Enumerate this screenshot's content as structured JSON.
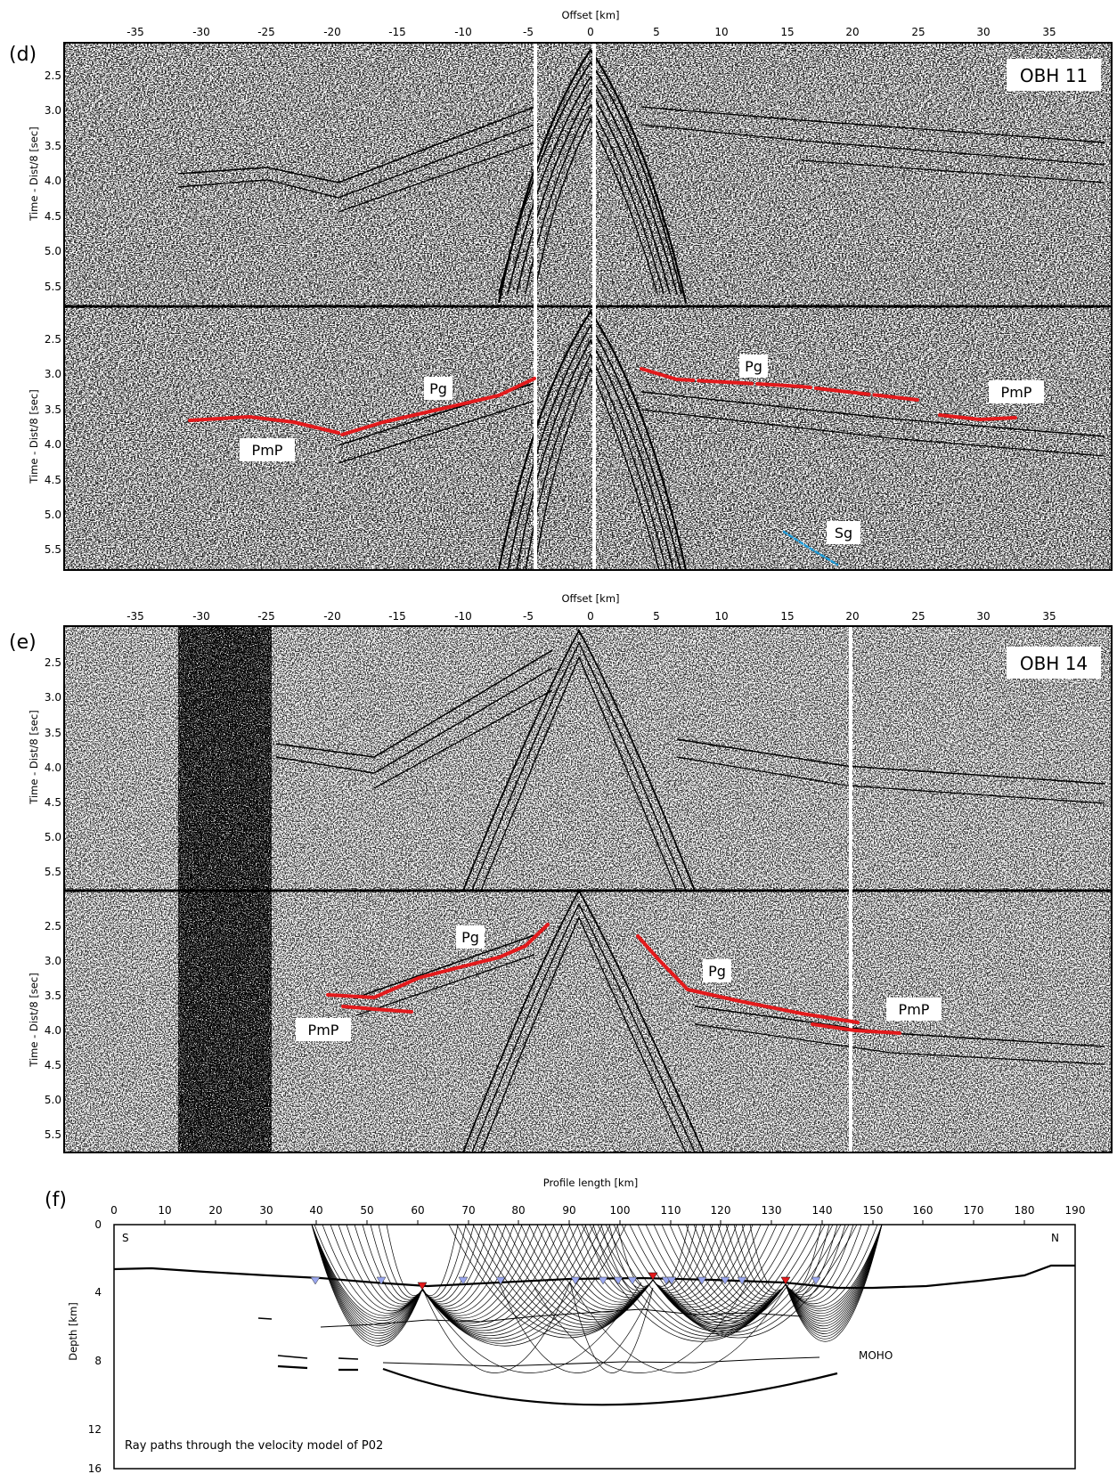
{
  "panel_d": {
    "letter": "(d)",
    "x_title": "Offset [km]",
    "x_ticks": [
      "-35",
      "-30",
      "-25",
      "-20",
      "-15",
      "-10",
      "-5",
      "0",
      "5",
      "10",
      "15",
      "20",
      "25",
      "30",
      "35"
    ],
    "y_title": "Time - Dist/8 [sec]",
    "y_ticks": [
      "2.5",
      "3.0",
      "3.5",
      "4.0",
      "4.5",
      "5.0",
      "5.5"
    ],
    "station": "OBH 11",
    "phases": {
      "pg_left": "Pg",
      "pg_right": "Pg",
      "pmp_left": "PmP",
      "pmp_right": "PmP",
      "sg": "Sg"
    }
  },
  "panel_e": {
    "letter": "(e)",
    "x_title": "Offset [km]",
    "x_ticks": [
      "-35",
      "-30",
      "-25",
      "-20",
      "-15",
      "-10",
      "-5",
      "0",
      "5",
      "10",
      "15",
      "20",
      "25",
      "30",
      "35"
    ],
    "y_title": "Time - Dist/8 [sec]",
    "y_ticks": [
      "2.5",
      "3.0",
      "3.5",
      "4.0",
      "4.5",
      "5.0",
      "5.5"
    ],
    "station": "OBH 14",
    "phases": {
      "pg_left": "Pg",
      "pg_right": "Pg",
      "pmp_left": "PmP",
      "pmp_right": "PmP"
    }
  },
  "panel_f": {
    "letter": "(f)",
    "x_title": "Profile length [km]",
    "x_ticks": [
      "0",
      "10",
      "20",
      "30",
      "40",
      "50",
      "60",
      "70",
      "80",
      "90",
      "100",
      "110",
      "120",
      "130",
      "140",
      "150",
      "160",
      "170",
      "180",
      "190"
    ],
    "y_title": "Depth [km]",
    "y_ticks": [
      "0",
      "4",
      "8",
      "12",
      "16"
    ],
    "south": "S",
    "north": "N",
    "moho": "MOHO",
    "caption": "Ray paths through the velocity model of P02"
  },
  "colors": {
    "picks": "#e31a1c",
    "sg_pick": "#1f9bd7",
    "receiver": "#9aa7f0",
    "station": "#e31a1c"
  }
}
